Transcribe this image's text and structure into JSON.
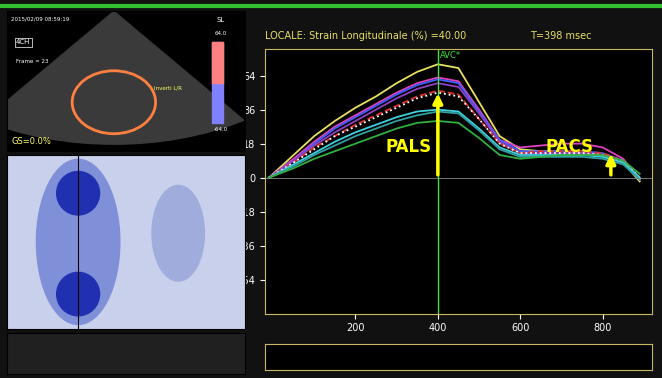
{
  "chart_data": {
    "type": "line",
    "title": "LOCALE: Strain Longitudinale (%) =40.00",
    "subtitle": "T=398 msec",
    "x": [
      -10,
      50,
      100,
      150,
      200,
      250,
      300,
      350,
      400,
      450,
      500,
      550,
      600,
      650,
      700,
      750,
      800,
      850,
      890
    ],
    "series": [
      {
        "color": "#e8e060",
        "line_style": "solid",
        "values": [
          0,
          12,
          22,
          30,
          37,
          43,
          50,
          56,
          60,
          58,
          40,
          22,
          15,
          14,
          14,
          13,
          12,
          8,
          -2
        ]
      },
      {
        "color": "#e040c0",
        "line_style": "solid",
        "values": [
          0,
          10,
          19,
          27,
          33,
          39,
          45,
          50,
          53,
          51,
          36,
          20,
          16,
          17,
          18,
          18,
          16,
          10,
          -1
        ]
      },
      {
        "color": "#4060ff",
        "line_style": "solid",
        "values": [
          0,
          9,
          18,
          26,
          32,
          38,
          44,
          49,
          52,
          50,
          35,
          20,
          14,
          14,
          14,
          14,
          13,
          9,
          0
        ]
      },
      {
        "color": "#9040c0",
        "line_style": "solid",
        "values": [
          0,
          9,
          17,
          24,
          30,
          36,
          42,
          47,
          50,
          48,
          34,
          19,
          13,
          13,
          13,
          13,
          12,
          8,
          -1
        ]
      },
      {
        "color": "#e03030",
        "line_style": "dashed",
        "values": [
          0,
          8,
          16,
          22,
          28,
          33,
          38,
          43,
          46,
          44,
          31,
          18,
          13,
          14,
          14,
          14,
          13,
          9,
          0
        ]
      },
      {
        "color": "#ffffff",
        "line_style": "dotted",
        "values": [
          0,
          8,
          15,
          22,
          27,
          32,
          37,
          42,
          45,
          43,
          31,
          18,
          13,
          13,
          13,
          13,
          12,
          9,
          0
        ]
      },
      {
        "color": "#40d0e0",
        "line_style": "solid",
        "values": [
          0,
          7,
          13,
          19,
          24,
          28,
          32,
          35,
          36,
          35,
          26,
          16,
          12,
          12,
          12,
          12,
          11,
          8,
          0
        ]
      },
      {
        "color": "#30a0a0",
        "line_style": "solid",
        "values": [
          0,
          6,
          12,
          17,
          22,
          26,
          30,
          33,
          35,
          34,
          25,
          15,
          11,
          11,
          11,
          11,
          10,
          7,
          -1
        ]
      },
      {
        "color": "#30b040",
        "line_style": "solid",
        "values": [
          0,
          5,
          10,
          14,
          18,
          22,
          26,
          29,
          30,
          29,
          21,
          12,
          10,
          11,
          12,
          12,
          12,
          9,
          2
        ]
      }
    ],
    "xlim": [
      -20,
      920
    ],
    "ylim": [
      -72,
      68
    ],
    "xticks": [
      200,
      400,
      600,
      800
    ],
    "yticks": [
      54,
      36,
      18,
      0,
      -18,
      -36,
      -54
    ],
    "grid": false,
    "annotations": [
      {
        "text": "AVC*",
        "x": 400,
        "y": 62,
        "color": "#40e040"
      },
      {
        "text": "PALS",
        "x": 330,
        "y": 16,
        "color": "#ffff00",
        "arrow_from": 0,
        "arrow_to": 46,
        "arrow_x": 400
      },
      {
        "text": "PACS",
        "x": 720,
        "y": 16,
        "color": "#ffff00",
        "arrow_from": 0,
        "arrow_to": 14,
        "arrow_x": 820
      }
    ]
  },
  "side_panel": {
    "texts": [
      "2015/02/09 08:59:19",
      "4CH",
      "Frame = 23",
      "SL",
      "64.0",
      "-64.0",
      "Inverti L/R",
      "GS=0.0%"
    ]
  }
}
